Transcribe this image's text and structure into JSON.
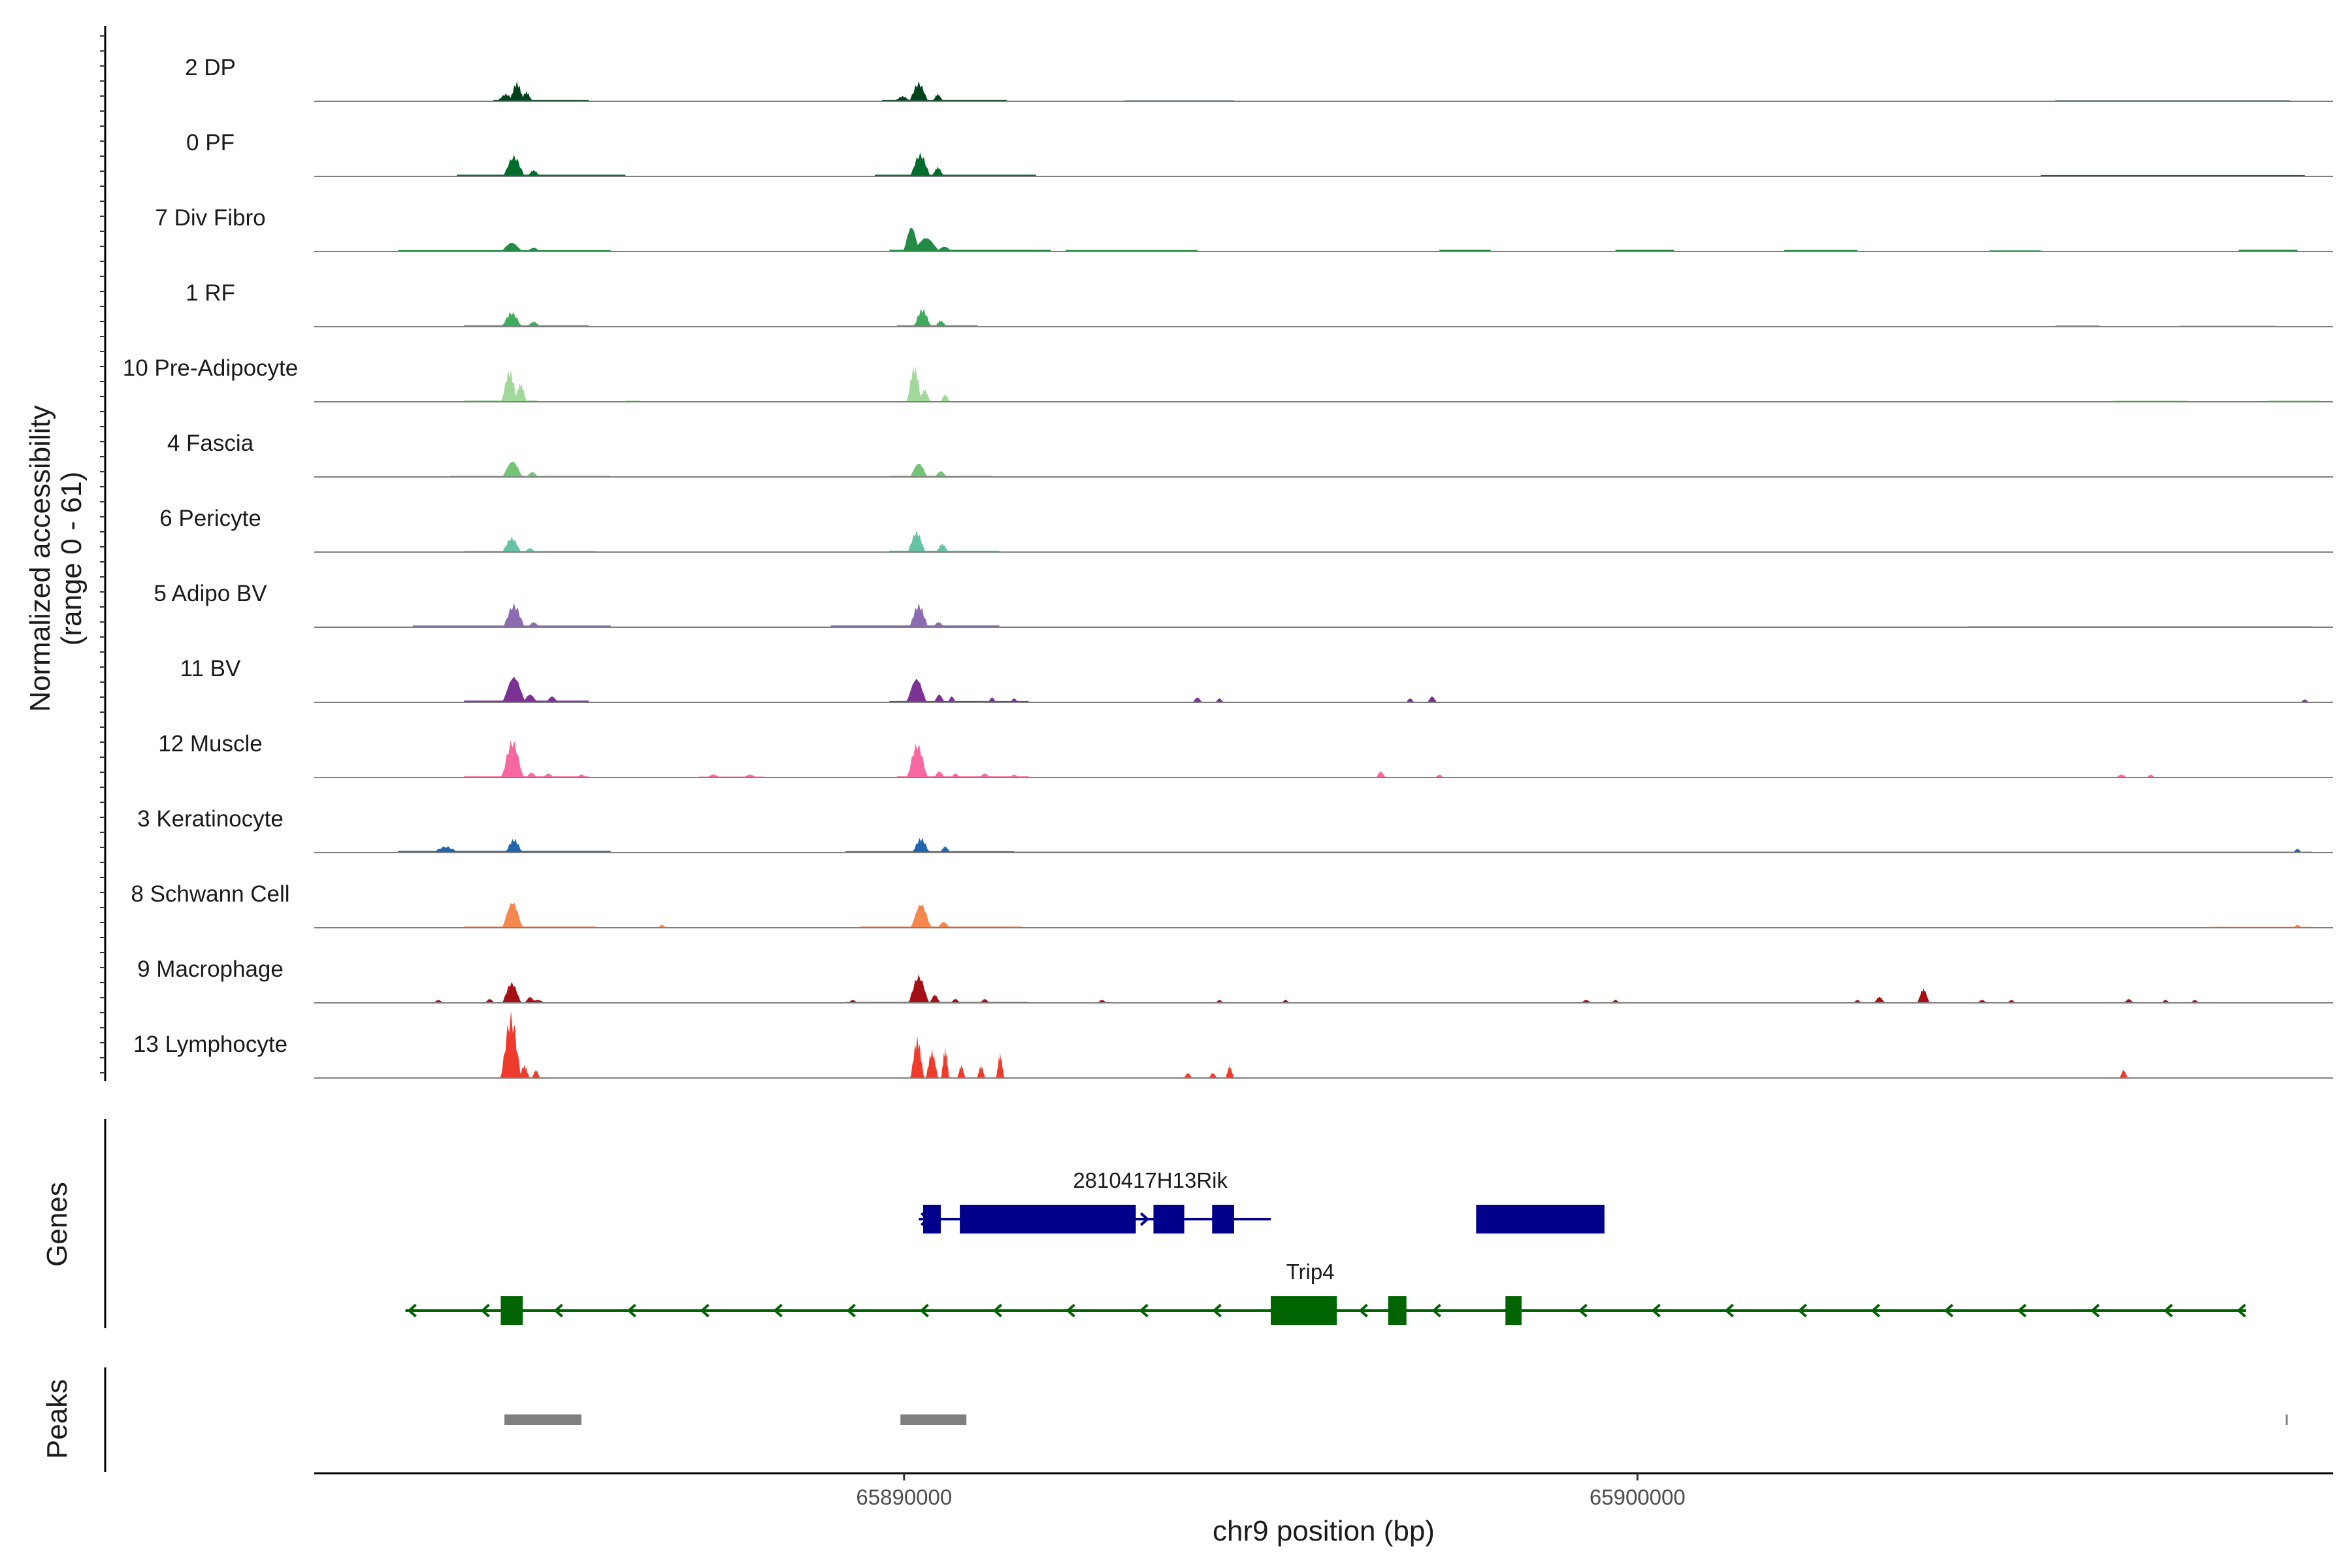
{
  "chart_data": {
    "type": "area",
    "ylabel": "Normalized accessibility",
    "ylabel_range": "(range 0 - 61)",
    "ylim": [
      0,
      61
    ],
    "xlabel": "chr9 position (bp)",
    "xlim": [
      65881957,
      65909485
    ],
    "x_ticks": [
      65890000,
      65900000
    ],
    "x_tick_labels": [
      "65890000",
      "65900000"
    ],
    "panel_labels": {
      "genes": "Genes",
      "peaks": "Peaks"
    },
    "grid": false,
    "tracks": [
      {
        "name": "2 DP",
        "color": "#00441b",
        "peaks": [
          [
            65884570,
            130,
            7
          ],
          [
            65884720,
            110,
            18
          ],
          [
            65884850,
            90,
            9
          ],
          [
            65890200,
            140,
            18
          ],
          [
            65890460,
            80,
            7
          ],
          [
            65889980,
            120,
            5
          ]
        ],
        "background": [
          [
            65884400,
            65885700,
            1.2
          ],
          [
            65889700,
            65891400,
            1.2
          ],
          [
            65893000,
            65894500,
            0.8
          ],
          [
            65905700,
            65908900,
            0.9
          ]
        ]
      },
      {
        "name": "0 PF",
        "color": "#006d2c",
        "peaks": [
          [
            65884680,
            160,
            20
          ],
          [
            65884950,
            100,
            6
          ],
          [
            65890220,
            150,
            22
          ],
          [
            65890460,
            90,
            9
          ]
        ],
        "background": [
          [
            65883900,
            65886200,
            1.5
          ],
          [
            65889600,
            65891800,
            1.5
          ],
          [
            65896000,
            65904000,
            0.5
          ],
          [
            65905500,
            65909100,
            1.2
          ]
        ]
      },
      {
        "name": "7 Div Fibro",
        "color": "#238b45",
        "peaks": [
          [
            65884650,
            160,
            9
          ],
          [
            65884950,
            100,
            4
          ],
          [
            65890100,
            120,
            25
          ],
          [
            65890300,
            200,
            14
          ],
          [
            65890550,
            120,
            5
          ]
        ],
        "background": [
          [
            65883100,
            65886000,
            1.2
          ],
          [
            65889800,
            65892000,
            1.5
          ],
          [
            65892200,
            65894000,
            1.3
          ],
          [
            65897300,
            65898000,
            1.5
          ],
          [
            65899700,
            65900500,
            1.5
          ],
          [
            65902000,
            65903000,
            1.4
          ],
          [
            65904800,
            65905500,
            1.0
          ],
          [
            65908200,
            65909000,
            1.6
          ]
        ]
      },
      {
        "name": "1 RF",
        "color": "#41ab5d",
        "peaks": [
          [
            65884650,
            150,
            14
          ],
          [
            65884950,
            100,
            5
          ],
          [
            65890250,
            130,
            17
          ],
          [
            65890500,
            90,
            6
          ]
        ],
        "background": [
          [
            65884000,
            65885700,
            1.2
          ],
          [
            65889900,
            65891000,
            1.2
          ],
          [
            65905700,
            65906300,
            1.0
          ],
          [
            65907400,
            65908700,
            0.8
          ]
        ]
      },
      {
        "name": "10 Pre-Adipocyte",
        "color": "#a1d99b",
        "peaks": [
          [
            65884620,
            120,
            30
          ],
          [
            65884770,
            90,
            18
          ],
          [
            65890140,
            110,
            34
          ],
          [
            65890280,
            90,
            12
          ],
          [
            65890560,
            70,
            7
          ]
        ],
        "background": [
          [
            65884000,
            65885000,
            1.2
          ],
          [
            65886200,
            65886400,
            1.0
          ],
          [
            65906500,
            65907500,
            1.0
          ],
          [
            65908600,
            65909300,
            1.1
          ]
        ]
      },
      {
        "name": "4 Fascia",
        "color": "#74c476",
        "peaks": [
          [
            65884660,
            150,
            16
          ],
          [
            65884930,
            90,
            5
          ],
          [
            65890200,
            130,
            14
          ],
          [
            65890500,
            90,
            6
          ]
        ],
        "background": [
          [
            65883800,
            65886000,
            1.0
          ],
          [
            65889800,
            65891200,
            1.0
          ],
          [
            65903000,
            65909200,
            0.4
          ]
        ]
      },
      {
        "name": "6 Pericyte",
        "color": "#66c2a4",
        "peaks": [
          [
            65884650,
            140,
            14
          ],
          [
            65884900,
            80,
            4
          ],
          [
            65890170,
            130,
            20
          ],
          [
            65890520,
            90,
            8
          ]
        ],
        "background": [
          [
            65884000,
            65885800,
            1.0
          ],
          [
            65889800,
            65891300,
            1.2
          ],
          [
            65900000,
            65909200,
            0.4
          ]
        ]
      },
      {
        "name": "5 Adipo BV",
        "color": "#8c6bb1",
        "peaks": [
          [
            65884680,
            160,
            22
          ],
          [
            65884950,
            90,
            5
          ],
          [
            65890200,
            140,
            22
          ],
          [
            65890470,
            90,
            5
          ]
        ],
        "background": [
          [
            65883300,
            65886000,
            1.5
          ],
          [
            65889000,
            65891300,
            1.6
          ],
          [
            65891300,
            65904500,
            0.6
          ],
          [
            65904500,
            65909200,
            0.9
          ]
        ]
      },
      {
        "name": "11 BV",
        "color": "#7b3294",
        "peaks": [
          [
            65884680,
            170,
            26
          ],
          [
            65884900,
            110,
            8
          ],
          [
            65885200,
            90,
            6
          ],
          [
            65890170,
            150,
            24
          ],
          [
            65890480,
            80,
            8
          ],
          [
            65890650,
            60,
            6
          ],
          [
            65891200,
            60,
            5
          ],
          [
            65891500,
            60,
            4
          ],
          [
            65894000,
            70,
            5
          ],
          [
            65894300,
            60,
            4
          ],
          [
            65896900,
            60,
            4
          ],
          [
            65897200,
            70,
            6
          ],
          [
            65909100,
            60,
            3
          ]
        ],
        "background": [
          [
            65884000,
            65885700,
            1.5
          ],
          [
            65889800,
            65891700,
            1.2
          ]
        ]
      },
      {
        "name": "12 Muscle",
        "color": "#f768a1",
        "peaks": [
          [
            65884660,
            160,
            36
          ],
          [
            65884920,
            80,
            5
          ],
          [
            65885150,
            80,
            4
          ],
          [
            65885600,
            70,
            3
          ],
          [
            65890180,
            150,
            33
          ],
          [
            65890480,
            80,
            6
          ],
          [
            65890700,
            70,
            4
          ],
          [
            65891100,
            80,
            4
          ],
          [
            65891500,
            70,
            3
          ],
          [
            65887400,
            100,
            3
          ],
          [
            65887900,
            100,
            3
          ],
          [
            65896500,
            70,
            6
          ],
          [
            65897300,
            60,
            3
          ],
          [
            65906600,
            80,
            3
          ],
          [
            65907000,
            60,
            3
          ]
        ],
        "background": [
          [
            65884000,
            65885700,
            1.0
          ],
          [
            65887200,
            65888100,
            0.8
          ],
          [
            65889900,
            65891700,
            1.0
          ]
        ]
      },
      {
        "name": "3 Keratinocyte",
        "color": "#2166ac",
        "peaks": [
          [
            65883750,
            200,
            6
          ],
          [
            65884680,
            130,
            13
          ],
          [
            65890230,
            130,
            14
          ],
          [
            65890560,
            80,
            6
          ],
          [
            65909000,
            60,
            4
          ]
        ],
        "background": [
          [
            65883100,
            65886000,
            1.5
          ],
          [
            65889200,
            65891500,
            1.2
          ],
          [
            65891500,
            65909200,
            0.8
          ]
        ]
      },
      {
        "name": "8 Schwann Cell",
        "color": "#f4874e",
        "peaks": [
          [
            65884660,
            150,
            26
          ],
          [
            65890230,
            150,
            24
          ],
          [
            65890540,
            90,
            6
          ],
          [
            65886700,
            60,
            3
          ],
          [
            65909000,
            60,
            3
          ]
        ],
        "background": [
          [
            65884000,
            65885800,
            1.0
          ],
          [
            65889400,
            65891600,
            1.0
          ],
          [
            65907800,
            65909200,
            0.8
          ]
        ]
      },
      {
        "name": "9 Macrophage",
        "color": "#a50f15",
        "peaks": [
          [
            65884650,
            140,
            20
          ],
          [
            65884900,
            80,
            6
          ],
          [
            65884350,
            70,
            4
          ],
          [
            65885000,
            120,
            3
          ],
          [
            65890200,
            150,
            27
          ],
          [
            65890420,
            80,
            8
          ],
          [
            65890700,
            70,
            4
          ],
          [
            65891100,
            70,
            4
          ],
          [
            65889300,
            70,
            3
          ],
          [
            65892700,
            70,
            3
          ],
          [
            65894300,
            60,
            3
          ],
          [
            65895200,
            60,
            3
          ],
          [
            65899300,
            80,
            3
          ],
          [
            65899700,
            60,
            3
          ],
          [
            65903000,
            60,
            3
          ],
          [
            65903300,
            80,
            6
          ],
          [
            65903900,
            90,
            14
          ],
          [
            65904700,
            70,
            3
          ],
          [
            65905100,
            60,
            3
          ],
          [
            65906700,
            70,
            4
          ],
          [
            65907200,
            60,
            3
          ],
          [
            65907600,
            60,
            3
          ],
          [
            65883650,
            70,
            3
          ]
        ],
        "background": [
          [
            65883300,
            65885500,
            0.6
          ],
          [
            65889200,
            65891700,
            0.8
          ]
        ]
      },
      {
        "name": "13 Lymphocyte",
        "color": "#ef3b2c",
        "peaks": [
          [
            65884640,
            150,
            60
          ],
          [
            65884820,
            80,
            12
          ],
          [
            65884980,
            60,
            8
          ],
          [
            65890180,
            100,
            38
          ],
          [
            65890380,
            90,
            26
          ],
          [
            65890560,
            60,
            28
          ],
          [
            65890780,
            60,
            12
          ],
          [
            65891050,
            60,
            12
          ],
          [
            65891310,
            60,
            23
          ],
          [
            65893870,
            60,
            5
          ],
          [
            65894210,
            60,
            5
          ],
          [
            65894440,
            60,
            12
          ],
          [
            65906630,
            60,
            8
          ]
        ],
        "background": []
      }
    ],
    "genes": [
      {
        "name": "2810417H13Rik",
        "strand": "+",
        "color": "#00008b",
        "start": 65890200,
        "end": 65895000,
        "exons": [
          [
            65890260,
            65890500
          ],
          [
            65890760,
            65893160
          ],
          [
            65893400,
            65893820
          ],
          [
            65894500,
            65894200
          ]
        ]
      },
      {
        "name": "Trip4",
        "strand": "-",
        "color": "#006400",
        "start": 65883200,
        "end": 65908300,
        "exons": [
          [
            65884500,
            65884800
          ],
          [
            65895000,
            65895900
          ],
          [
            65896600,
            65896850
          ],
          [
            65898200,
            65898420
          ]
        ]
      }
    ],
    "peaks_track": [
      [
        65884550,
        65885600
      ],
      [
        65889950,
        65890850
      ],
      [
        65908840,
        65908860
      ]
    ]
  }
}
